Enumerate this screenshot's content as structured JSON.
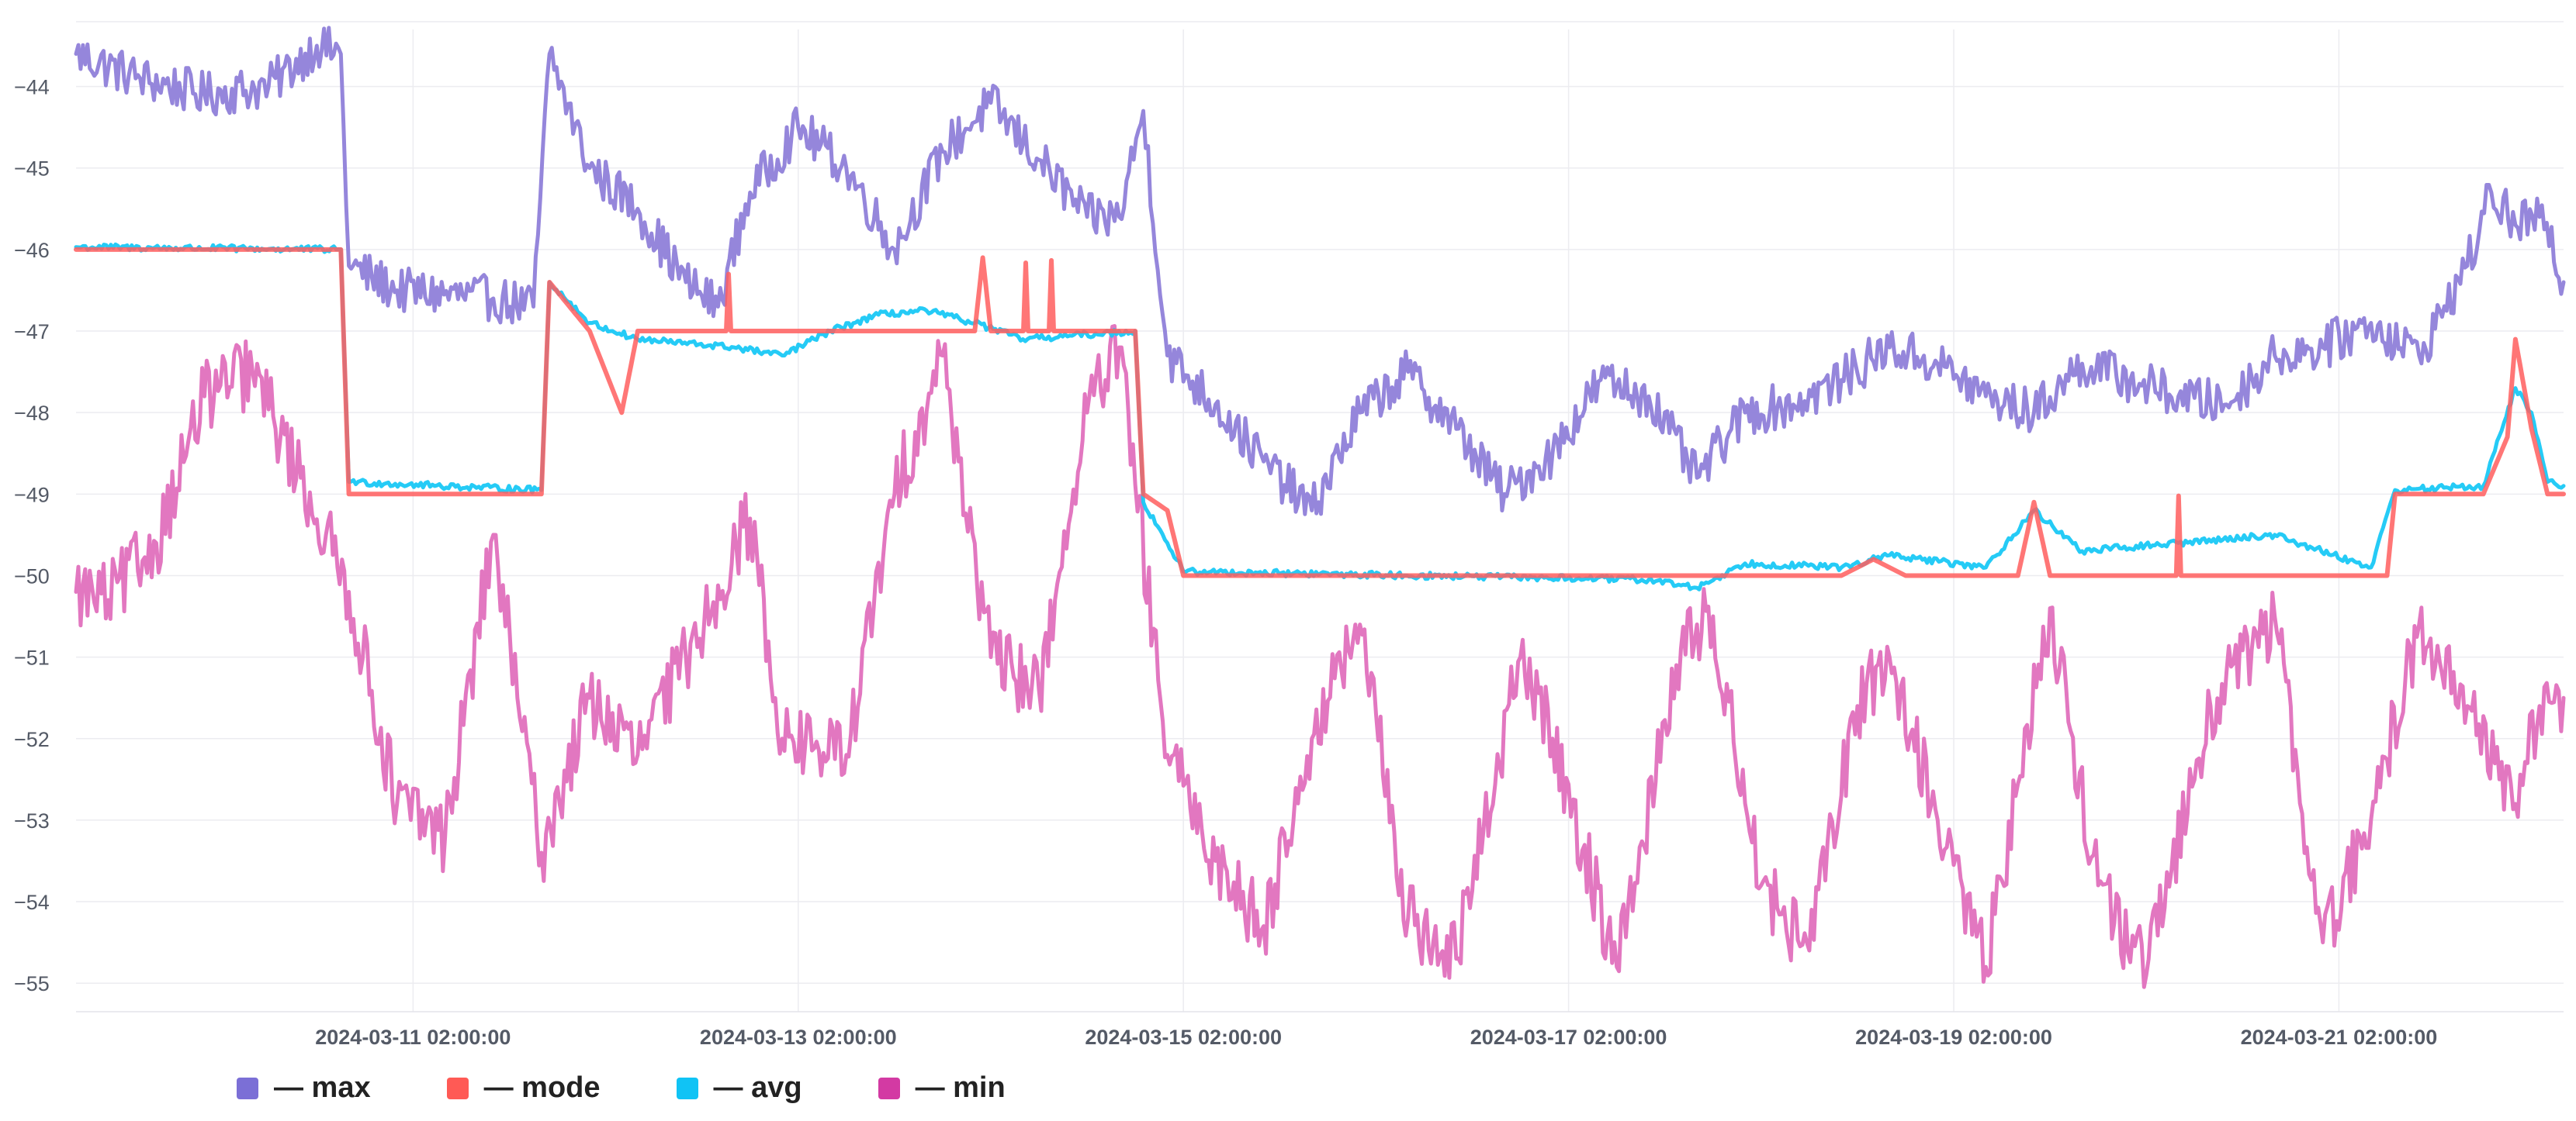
{
  "chart_data": {
    "type": "line",
    "title": "",
    "xlabel": "",
    "ylabel": "",
    "ylim": [
      -55.35,
      -43.3
    ],
    "xlim": [
      "2024-03-09 08:00:00",
      "2024-03-22 06:00:00"
    ],
    "grid": true,
    "legend_position": "bottom-left",
    "y_ticks": [
      -44,
      -45,
      -46,
      -47,
      -48,
      -49,
      -50,
      -51,
      -52,
      -53,
      -54,
      -55
    ],
    "y_tick_labels": [
      "−44",
      "−45",
      "−46",
      "−47",
      "−48",
      "−49",
      "−50",
      "−51",
      "−52",
      "−53",
      "−54",
      "−55"
    ],
    "x_ticks": [
      "2024-03-11 02:00:00",
      "2024-03-13 02:00:00",
      "2024-03-15 02:00:00",
      "2024-03-17 02:00:00",
      "2024-03-19 02:00:00",
      "2024-03-21 02:00:00"
    ],
    "series": [
      {
        "name": "— max",
        "color": "#8f7fd9",
        "points": [
          [
            "2024-03-09 08:00:00",
            -43.6
          ],
          [
            "2024-03-09 16:00:00",
            -43.9
          ],
          [
            "2024-03-10 00:00:00",
            -44.1
          ],
          [
            "2024-03-10 08:00:00",
            -44.0
          ],
          [
            "2024-03-10 14:00:00",
            -43.5
          ],
          [
            "2024-03-10 17:00:00",
            -43.6
          ],
          [
            "2024-03-10 18:00:00",
            -46.2
          ],
          [
            "2024-03-11 00:00:00",
            -46.5
          ],
          [
            "2024-03-11 12:00:00",
            -46.6
          ],
          [
            "2024-03-11 17:00:00",
            -46.7
          ],
          [
            "2024-03-11 19:00:00",
            -43.6
          ],
          [
            "2024-03-12 00:00:00",
            -45.0
          ],
          [
            "2024-03-12 06:00:00",
            -45.5
          ],
          [
            "2024-03-12 12:00:00",
            -46.4
          ],
          [
            "2024-03-12 16:00:00",
            -46.7
          ],
          [
            "2024-03-12 20:00:00",
            -45.3
          ],
          [
            "2024-03-13 02:00:00",
            -44.5
          ],
          [
            "2024-03-13 08:00:00",
            -45.0
          ],
          [
            "2024-03-13 14:00:00",
            -46.0
          ],
          [
            "2024-03-13 20:00:00",
            -44.8
          ],
          [
            "2024-03-14 02:00:00",
            -44.2
          ],
          [
            "2024-03-14 08:00:00",
            -44.9
          ],
          [
            "2024-03-14 14:00:00",
            -45.6
          ],
          [
            "2024-03-14 18:00:00",
            -45.6
          ],
          [
            "2024-03-14 21:00:00",
            -44.3
          ],
          [
            "2024-03-15 00:00:00",
            -47.3
          ],
          [
            "2024-03-15 06:00:00",
            -47.9
          ],
          [
            "2024-03-15 12:00:00",
            -48.6
          ],
          [
            "2024-03-15 18:00:00",
            -49.2
          ],
          [
            "2024-03-16 00:00:00",
            -48.0
          ],
          [
            "2024-03-16 06:00:00",
            -47.5
          ],
          [
            "2024-03-16 12:00:00",
            -48.2
          ],
          [
            "2024-03-16 18:00:00",
            -49.0
          ],
          [
            "2024-03-17 00:00:00",
            -48.5
          ],
          [
            "2024-03-17 06:00:00",
            -47.6
          ],
          [
            "2024-03-17 12:00:00",
            -47.8
          ],
          [
            "2024-03-17 18:00:00",
            -48.8
          ],
          [
            "2024-03-18 00:00:00",
            -48.0
          ],
          [
            "2024-03-18 06:00:00",
            -47.9
          ],
          [
            "2024-03-18 12:00:00",
            -47.6
          ],
          [
            "2024-03-18 18:00:00",
            -47.2
          ],
          [
            "2024-03-19 00:00:00",
            -47.4
          ],
          [
            "2024-03-19 06:00:00",
            -47.8
          ],
          [
            "2024-03-19 12:00:00",
            -48.0
          ],
          [
            "2024-03-19 18:00:00",
            -47.4
          ],
          [
            "2024-03-20 00:00:00",
            -47.6
          ],
          [
            "2024-03-20 06:00:00",
            -47.8
          ],
          [
            "2024-03-20 12:00:00",
            -47.9
          ],
          [
            "2024-03-20 18:00:00",
            -47.3
          ],
          [
            "2024-03-21 00:00:00",
            -47.2
          ],
          [
            "2024-03-21 06:00:00",
            -46.9
          ],
          [
            "2024-03-21 12:00:00",
            -47.3
          ],
          [
            "2024-03-21 18:00:00",
            -46.2
          ],
          [
            "2024-03-21 21:00:00",
            -45.3
          ],
          [
            "2024-03-22 00:00:00",
            -45.7
          ],
          [
            "2024-03-22 03:00:00",
            -45.6
          ],
          [
            "2024-03-22 06:00:00",
            -46.4
          ]
        ]
      },
      {
        "name": "— mode",
        "color": "#ff5e5e",
        "points": [
          [
            "2024-03-09 08:00:00",
            -46.0
          ],
          [
            "2024-03-10 17:00:00",
            -46.0
          ],
          [
            "2024-03-10 18:00:00",
            -49.0
          ],
          [
            "2024-03-11 18:00:00",
            -49.0
          ],
          [
            "2024-03-11 19:00:00",
            -46.4
          ],
          [
            "2024-03-12 00:00:00",
            -47.0
          ],
          [
            "2024-03-12 04:00:00",
            -48.0
          ],
          [
            "2024-03-12 06:00:00",
            -47.0
          ],
          [
            "2024-03-13 18:00:00",
            -47.0
          ],
          [
            "2024-03-14 00:00:00",
            -47.0
          ],
          [
            "2024-03-14 01:00:00",
            -46.1
          ],
          [
            "2024-03-14 02:00:00",
            -47.0
          ],
          [
            "2024-03-14 20:00:00",
            -47.0
          ],
          [
            "2024-03-14 21:00:00",
            -49.0
          ],
          [
            "2024-03-15 00:00:00",
            -49.2
          ],
          [
            "2024-03-15 02:00:00",
            -50.0
          ],
          [
            "2024-03-18 12:00:00",
            -50.0
          ],
          [
            "2024-03-18 16:00:00",
            -49.8
          ],
          [
            "2024-03-18 20:00:00",
            -50.0
          ],
          [
            "2024-03-19 10:00:00",
            -50.0
          ],
          [
            "2024-03-19 12:00:00",
            -49.1
          ],
          [
            "2024-03-19 14:00:00",
            -50.0
          ],
          [
            "2024-03-20 20:00:00",
            -50.0
          ],
          [
            "2024-03-21 08:00:00",
            -50.0
          ],
          [
            "2024-03-21 09:00:00",
            -49.0
          ],
          [
            "2024-03-21 20:00:00",
            -49.0
          ],
          [
            "2024-03-21 23:00:00",
            -48.3
          ],
          [
            "2024-03-22 00:00:00",
            -47.1
          ],
          [
            "2024-03-22 02:00:00",
            -48.2
          ],
          [
            "2024-03-22 04:00:00",
            -49.0
          ],
          [
            "2024-03-22 06:00:00",
            -49.0
          ]
        ]
      },
      {
        "name": "— avg",
        "color": "#19c8f5",
        "points": [
          [
            "2024-03-09 08:00:00",
            -45.97
          ],
          [
            "2024-03-10 17:00:00",
            -46.0
          ],
          [
            "2024-03-10 18:00:00",
            -48.85
          ],
          [
            "2024-03-11 18:00:00",
            -48.95
          ],
          [
            "2024-03-11 19:00:00",
            -46.4
          ],
          [
            "2024-03-12 00:00:00",
            -46.9
          ],
          [
            "2024-03-12 06:00:00",
            -47.1
          ],
          [
            "2024-03-12 18:00:00",
            -47.2
          ],
          [
            "2024-03-13 00:00:00",
            -47.3
          ],
          [
            "2024-03-13 06:00:00",
            -47.0
          ],
          [
            "2024-03-13 12:00:00",
            -46.8
          ],
          [
            "2024-03-13 18:00:00",
            -46.75
          ],
          [
            "2024-03-14 00:00:00",
            -46.9
          ],
          [
            "2024-03-14 06:00:00",
            -47.1
          ],
          [
            "2024-03-14 20:00:00",
            -47.0
          ],
          [
            "2024-03-14 21:00:00",
            -49.1
          ],
          [
            "2024-03-15 00:00:00",
            -49.6
          ],
          [
            "2024-03-15 02:00:00",
            -49.95
          ],
          [
            "2024-03-17 12:00:00",
            -50.05
          ],
          [
            "2024-03-17 18:00:00",
            -50.15
          ],
          [
            "2024-03-18 00:00:00",
            -49.85
          ],
          [
            "2024-03-18 12:00:00",
            -49.9
          ],
          [
            "2024-03-18 18:00:00",
            -49.75
          ],
          [
            "2024-03-19 06:00:00",
            -49.9
          ],
          [
            "2024-03-19 12:00:00",
            -49.2
          ],
          [
            "2024-03-19 18:00:00",
            -49.7
          ],
          [
            "2024-03-20 06:00:00",
            -49.6
          ],
          [
            "2024-03-20 18:00:00",
            -49.5
          ],
          [
            "2024-03-21 06:00:00",
            -49.9
          ],
          [
            "2024-03-21 09:00:00",
            -48.95
          ],
          [
            "2024-03-21 20:00:00",
            -48.9
          ],
          [
            "2024-03-22 00:00:00",
            -47.7
          ],
          [
            "2024-03-22 02:00:00",
            -48.0
          ],
          [
            "2024-03-22 04:00:00",
            -48.85
          ],
          [
            "2024-03-22 06:00:00",
            -48.9
          ]
        ]
      },
      {
        "name": "— min",
        "color": "#e070bd",
        "points": [
          [
            "2024-03-09 08:00:00",
            -50.2
          ],
          [
            "2024-03-09 12:00:00",
            -50.3
          ],
          [
            "2024-03-09 18:00:00",
            -49.6
          ],
          [
            "2024-03-10 00:00:00",
            -47.8
          ],
          [
            "2024-03-10 06:00:00",
            -47.5
          ],
          [
            "2024-03-10 12:00:00",
            -48.8
          ],
          [
            "2024-03-10 18:00:00",
            -50.2
          ],
          [
            "2024-03-11 00:00:00",
            -52.8
          ],
          [
            "2024-03-11 06:00:00",
            -53.2
          ],
          [
            "2024-03-11 12:00:00",
            -49.5
          ],
          [
            "2024-03-11 15:00:00",
            -51.5
          ],
          [
            "2024-03-11 18:00:00",
            -53.4
          ],
          [
            "2024-03-12 00:00:00",
            -51.5
          ],
          [
            "2024-03-12 06:00:00",
            -52.2
          ],
          [
            "2024-03-12 12:00:00",
            -51.0
          ],
          [
            "2024-03-12 20:00:00",
            -49.3
          ],
          [
            "2024-03-13 00:00:00",
            -52.0
          ],
          [
            "2024-03-13 08:00:00",
            -52.2
          ],
          [
            "2024-03-13 14:00:00",
            -49.0
          ],
          [
            "2024-03-13 20:00:00",
            -47.3
          ],
          [
            "2024-03-14 02:00:00",
            -51.0
          ],
          [
            "2024-03-14 08:00:00",
            -51.4
          ],
          [
            "2024-03-14 14:00:00",
            -48.0
          ],
          [
            "2024-03-14 18:00:00",
            -47.2
          ],
          [
            "2024-03-15 00:00:00",
            -52.2
          ],
          [
            "2024-03-15 06:00:00",
            -53.5
          ],
          [
            "2024-03-15 12:00:00",
            -54.3
          ],
          [
            "2024-03-15 18:00:00",
            -52.0
          ],
          [
            "2024-03-16 00:00:00",
            -50.6
          ],
          [
            "2024-03-16 06:00:00",
            -54.2
          ],
          [
            "2024-03-16 12:00:00",
            -54.7
          ],
          [
            "2024-03-16 20:00:00",
            -51.0
          ],
          [
            "2024-03-17 00:00:00",
            -52.0
          ],
          [
            "2024-03-17 08:00:00",
            -54.8
          ],
          [
            "2024-03-17 16:00:00",
            -50.9
          ],
          [
            "2024-03-17 20:00:00",
            -50.5
          ],
          [
            "2024-03-18 02:00:00",
            -53.8
          ],
          [
            "2024-03-18 08:00:00",
            -54.6
          ],
          [
            "2024-03-18 14:00:00",
            -51.6
          ],
          [
            "2024-03-18 18:00:00",
            -51.0
          ],
          [
            "2024-03-19 00:00:00",
            -53.0
          ],
          [
            "2024-03-19 06:00:00",
            -54.8
          ],
          [
            "2024-03-19 14:00:00",
            -50.4
          ],
          [
            "2024-03-19 20:00:00",
            -53.8
          ],
          [
            "2024-03-20 02:00:00",
            -54.9
          ],
          [
            "2024-03-20 10:00:00",
            -51.6
          ],
          [
            "2024-03-20 18:00:00",
            -50.5
          ],
          [
            "2024-03-21 00:00:00",
            -54.5
          ],
          [
            "2024-03-21 06:00:00",
            -53.0
          ],
          [
            "2024-03-21 12:00:00",
            -50.6
          ],
          [
            "2024-03-21 18:00:00",
            -51.6
          ],
          [
            "2024-03-22 00:00:00",
            -52.8
          ],
          [
            "2024-03-22 03:00:00",
            -51.6
          ],
          [
            "2024-03-22 06:00:00",
            -51.5
          ]
        ]
      }
    ]
  },
  "legend": {
    "items": [
      {
        "label": "— max",
        "color": "#7b6fd6"
      },
      {
        "label": "— mode",
        "color": "#ff5a55"
      },
      {
        "label": "— avg",
        "color": "#10c3f5"
      },
      {
        "label": "— min",
        "color": "#d33aa3"
      }
    ]
  }
}
